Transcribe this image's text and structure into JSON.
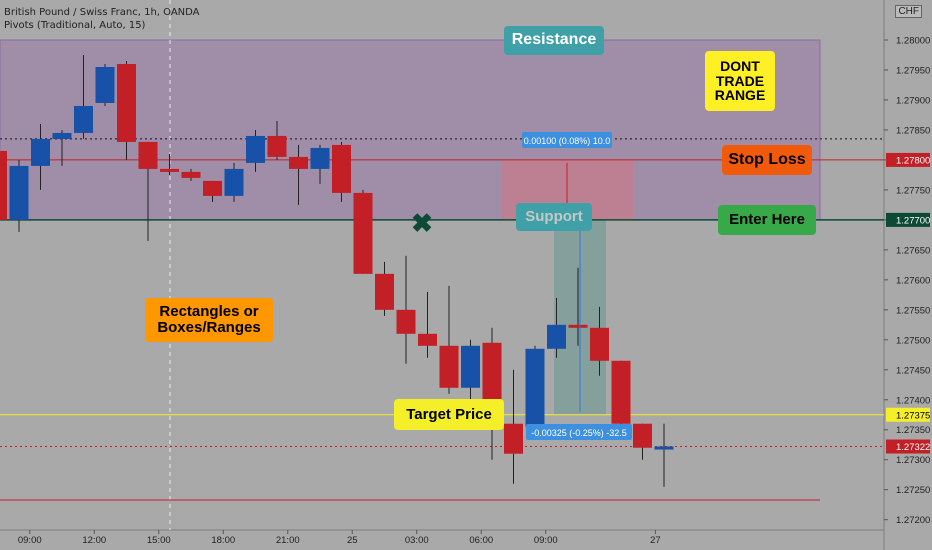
{
  "header": {
    "symbol_line": "British Pound / Swiss Franc, 1h, OANDA",
    "indicator_line": "Pivots (Traditional, Auto, 15)",
    "currency_badge": "CHF"
  },
  "notes": {
    "resistance": "Resistance",
    "dont_trade": "DONT\nTRADE\nRANGE",
    "stop_loss": "Stop Loss",
    "enter_here": "Enter Here",
    "support": "Support",
    "rectangles": "Rectangles or\nBoxes/Ranges",
    "target_price": "Target Price"
  },
  "measure": {
    "upper_label": "0.00100 (0.08%) 10.0",
    "lower_label": "-0.00325 (-0.25%) -32.5"
  },
  "price_tags": {
    "stop": "1.27800",
    "entry": "1.27700",
    "target": "1.27375",
    "last": "1.27322"
  },
  "colors": {
    "background": "#a9a9a9",
    "bull": "#1751a8",
    "bear": "#c21f26",
    "range_box": "#9d87a8",
    "resistance_note": "#3fa0a7",
    "dont_trade_note": "#ffef25",
    "stop_note": "#f15a0a",
    "enter_note": "#38a948",
    "rect_note": "#ff9800",
    "target_line": "#f5ef2a",
    "entry_line": "#0c4a35",
    "stop_line": "#c21f26"
  },
  "chart_data": {
    "type": "candlestick",
    "symbol": "GBPCHF",
    "timeframe": "1h",
    "y_ticks": [
      1.28,
      1.2795,
      1.279,
      1.2785,
      1.278,
      1.2775,
      1.277,
      1.2765,
      1.276,
      1.2755,
      1.275,
      1.2745,
      1.274,
      1.2735,
      1.273,
      1.2725,
      1.272
    ],
    "x_ticks": [
      {
        "label": "09:00",
        "i": 1.5
      },
      {
        "label": "12:00",
        "i": 4.5
      },
      {
        "label": "15:00",
        "i": 7.5
      },
      {
        "label": "18:00",
        "i": 10.5
      },
      {
        "label": "21:00",
        "i": 13.5
      },
      {
        "label": "25",
        "i": 16.5
      },
      {
        "label": "03:00",
        "i": 19.5
      },
      {
        "label": "06:00",
        "i": 22.5
      },
      {
        "label": "09:00",
        "i": 25.5
      },
      {
        "label": "27",
        "i": 30.6
      }
    ],
    "candles": [
      {
        "o": 1.27815,
        "h": 1.2783,
        "l": 1.277,
        "c": 1.277
      },
      {
        "o": 1.277,
        "h": 1.278,
        "l": 1.2768,
        "c": 1.2779
      },
      {
        "o": 1.2779,
        "h": 1.2786,
        "l": 1.2775,
        "c": 1.27835
      },
      {
        "o": 1.27835,
        "h": 1.2785,
        "l": 1.2779,
        "c": 1.27845
      },
      {
        "o": 1.27845,
        "h": 1.27975,
        "l": 1.27835,
        "c": 1.2789
      },
      {
        "o": 1.27895,
        "h": 1.2796,
        "l": 1.2789,
        "c": 1.27955
      },
      {
        "o": 1.2796,
        "h": 1.27965,
        "l": 1.278,
        "c": 1.2783
      },
      {
        "o": 1.2783,
        "h": 1.2783,
        "l": 1.27665,
        "c": 1.27785
      },
      {
        "o": 1.27785,
        "h": 1.2781,
        "l": 1.27775,
        "c": 1.2778
      },
      {
        "o": 1.2778,
        "h": 1.27785,
        "l": 1.27765,
        "c": 1.2777
      },
      {
        "o": 1.27765,
        "h": 1.27765,
        "l": 1.2773,
        "c": 1.2774
      },
      {
        "o": 1.2774,
        "h": 1.27795,
        "l": 1.2773,
        "c": 1.27785
      },
      {
        "o": 1.27795,
        "h": 1.2785,
        "l": 1.2778,
        "c": 1.2784
      },
      {
        "o": 1.2784,
        "h": 1.27865,
        "l": 1.278,
        "c": 1.27805
      },
      {
        "o": 1.27805,
        "h": 1.27825,
        "l": 1.27725,
        "c": 1.27785
      },
      {
        "o": 1.27785,
        "h": 1.27825,
        "l": 1.2776,
        "c": 1.2782
      },
      {
        "o": 1.27825,
        "h": 1.2783,
        "l": 1.2773,
        "c": 1.27745
      },
      {
        "o": 1.27745,
        "h": 1.2775,
        "l": 1.2761,
        "c": 1.2761
      },
      {
        "o": 1.2761,
        "h": 1.2763,
        "l": 1.2754,
        "c": 1.2755
      },
      {
        "o": 1.2755,
        "h": 1.2764,
        "l": 1.2746,
        "c": 1.2751
      },
      {
        "o": 1.2751,
        "h": 1.2758,
        "l": 1.2747,
        "c": 1.2749
      },
      {
        "o": 1.2749,
        "h": 1.2759,
        "l": 1.2741,
        "c": 1.2742
      },
      {
        "o": 1.2742,
        "h": 1.275,
        "l": 1.2737,
        "c": 1.2749
      },
      {
        "o": 1.27495,
        "h": 1.2752,
        "l": 1.273,
        "c": 1.27395
      },
      {
        "o": 1.2736,
        "h": 1.2745,
        "l": 1.2726,
        "c": 1.2731
      },
      {
        "o": 1.27355,
        "h": 1.2749,
        "l": 1.27355,
        "c": 1.27485
      },
      {
        "o": 1.27485,
        "h": 1.2757,
        "l": 1.2747,
        "c": 1.27525
      },
      {
        "o": 1.27525,
        "h": 1.2762,
        "l": 1.2749,
        "c": 1.2752
      },
      {
        "o": 1.2752,
        "h": 1.27555,
        "l": 1.2744,
        "c": 1.27465
      },
      {
        "o": 1.27465,
        "h": 1.27465,
        "l": 1.27345,
        "c": 1.2736
      },
      {
        "o": 1.2736,
        "h": 1.2736,
        "l": 1.273,
        "c": 1.2732
      },
      {
        "o": 1.27322,
        "h": 1.2736,
        "l": 1.27255,
        "c": 1.27322
      }
    ]
  }
}
